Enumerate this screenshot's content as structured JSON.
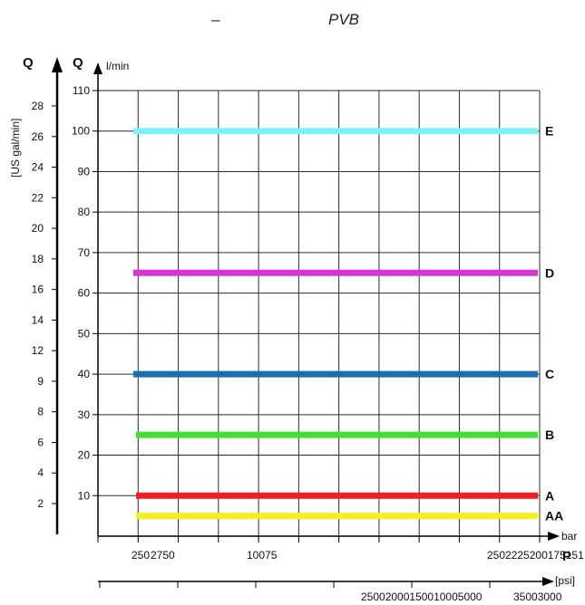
{
  "header": {
    "dash": "–",
    "title": "PVB"
  },
  "chart_data": {
    "type": "line",
    "title": "PVB",
    "y_left_outer": {
      "symbol": "Q",
      "unit": "[US gal/min]",
      "ticks": [
        2,
        4,
        6,
        8,
        9,
        12,
        14,
        16,
        18,
        20,
        22,
        24,
        26,
        28
      ]
    },
    "y_left_inner": {
      "symbol": "Q",
      "unit": "l/min",
      "ticks": [
        10,
        20,
        30,
        40,
        50,
        60,
        70,
        80,
        90,
        100,
        110
      ],
      "ylim": [
        0,
        110
      ]
    },
    "x_bar": {
      "symbol": "P",
      "unit": "bar",
      "ticks": [
        "250",
        "2750",
        "10075",
        "2502225200175151"
      ]
    },
    "x_psi": {
      "unit": "[psi]",
      "ticks": [
        "25002000150010005000",
        "35003000"
      ]
    },
    "series": [
      {
        "name": "E",
        "value": 100,
        "color": "#7ef0f7"
      },
      {
        "name": "D",
        "value": 65,
        "color": "#d633d6"
      },
      {
        "name": "C",
        "value": 40,
        "color": "#1a6fb0"
      },
      {
        "name": "B",
        "value": 25,
        "color": "#44dd33"
      },
      {
        "name": "A",
        "value": 10,
        "color": "#ee2020"
      },
      {
        "name": "AA",
        "value": 5,
        "color": "#f5ee22"
      }
    ],
    "grid": true
  }
}
